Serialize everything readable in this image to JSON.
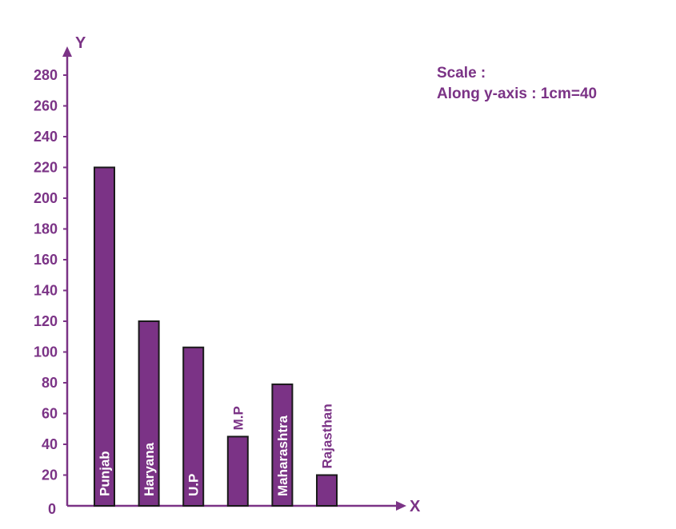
{
  "chart_data": {
    "type": "bar",
    "categories": [
      "Punjab",
      "Haryana",
      "U.P",
      "M.P",
      "Maharashtra",
      "Rajasthan"
    ],
    "values": [
      220,
      120,
      103,
      45,
      79,
      20
    ],
    "xlabel": "X",
    "ylabel": "Y",
    "ylim": [
      0,
      280
    ],
    "yticks": [
      "0",
      "20",
      "40",
      "60",
      "80",
      "100",
      "120",
      "140",
      "160",
      "180",
      "200",
      "220",
      "240",
      "260",
      "280"
    ],
    "grid": false,
    "legend": "none"
  },
  "annotation": {
    "line1": "Scale :",
    "line2": "Along y-axis : 1cm=40"
  },
  "colors": {
    "accent": "#7b3386",
    "bar_fill": "#7b3386",
    "bar_stroke": "#1a1a1a",
    "bar_label": "#ffffff"
  }
}
